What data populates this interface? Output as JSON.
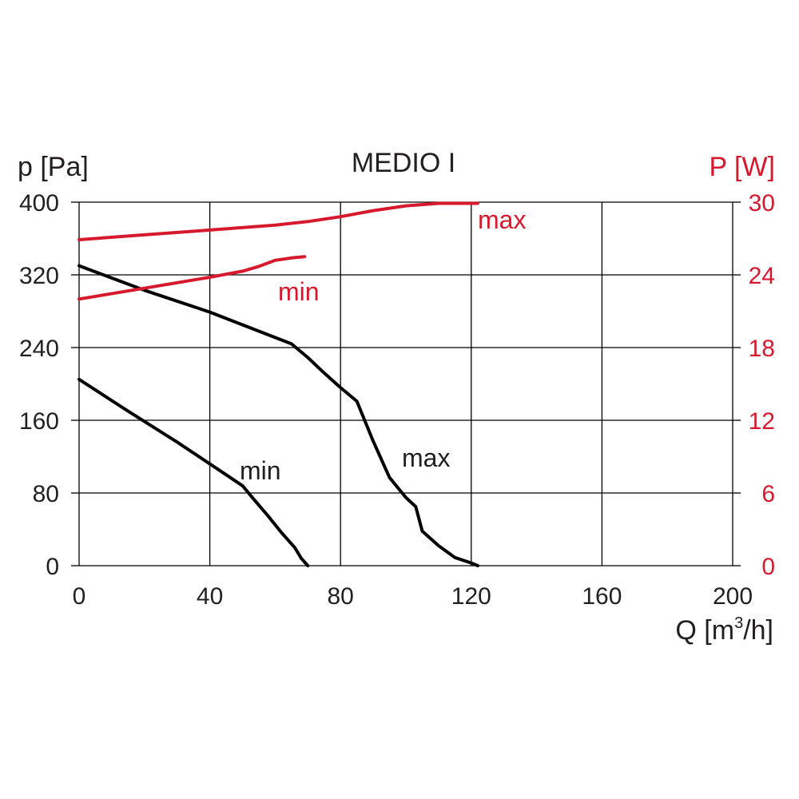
{
  "chart_data": {
    "type": "line",
    "title": "MEDIO I",
    "xlabel_main": "Q [m",
    "xlabel_sup": "3",
    "xlabel_tail": "/h]",
    "ylabel": "p [Pa]",
    "y2label": "P [W]",
    "xlim": [
      0,
      200
    ],
    "ylim": [
      0,
      400
    ],
    "y2lim": [
      0,
      30
    ],
    "x_ticks": [
      "0",
      "40",
      "80",
      "120",
      "160",
      "200"
    ],
    "y_ticks": [
      "0",
      "80",
      "160",
      "240",
      "320",
      "400"
    ],
    "y2_ticks": [
      "0",
      "6",
      "12",
      "18",
      "24",
      "30"
    ],
    "grid": true,
    "colors": {
      "pressure": "#000000",
      "power": "#d7192d",
      "grid": "#000000"
    },
    "series": [
      {
        "name": "max",
        "axis": "left",
        "color": "#000000",
        "points": [
          [
            0,
            330
          ],
          [
            20,
            303
          ],
          [
            40,
            279
          ],
          [
            55,
            258
          ],
          [
            65,
            244
          ],
          [
            70,
            229
          ],
          [
            75,
            212
          ],
          [
            80,
            196
          ],
          [
            85,
            181
          ],
          [
            90,
            137
          ],
          [
            95,
            97
          ],
          [
            100,
            75
          ],
          [
            103,
            65
          ],
          [
            105,
            38
          ],
          [
            110,
            22
          ],
          [
            115,
            9
          ],
          [
            120,
            3
          ],
          [
            122,
            0
          ]
        ]
      },
      {
        "name": "min",
        "axis": "left",
        "color": "#000000",
        "points": [
          [
            0,
            205
          ],
          [
            15,
            170
          ],
          [
            30,
            136
          ],
          [
            40,
            112
          ],
          [
            50,
            88
          ],
          [
            53,
            75
          ],
          [
            58,
            54
          ],
          [
            62,
            36
          ],
          [
            66,
            20
          ],
          [
            68,
            8
          ],
          [
            70,
            0
          ]
        ]
      },
      {
        "name": "max",
        "axis": "right",
        "color": "#d7192d",
        "points": [
          [
            0,
            26.9
          ],
          [
            20,
            27.3
          ],
          [
            40,
            27.7
          ],
          [
            60,
            28.1
          ],
          [
            70,
            28.4
          ],
          [
            80,
            28.8
          ],
          [
            90,
            29.3
          ],
          [
            100,
            29.7
          ],
          [
            110,
            29.9
          ],
          [
            122,
            29.9
          ]
        ]
      },
      {
        "name": "min",
        "axis": "right",
        "color": "#d7192d",
        "points": [
          [
            0,
            22.0
          ],
          [
            20,
            22.9
          ],
          [
            40,
            23.8
          ],
          [
            50,
            24.3
          ],
          [
            55,
            24.7
          ],
          [
            60,
            25.2
          ],
          [
            65,
            25.4
          ],
          [
            69,
            25.5
          ]
        ]
      }
    ]
  }
}
